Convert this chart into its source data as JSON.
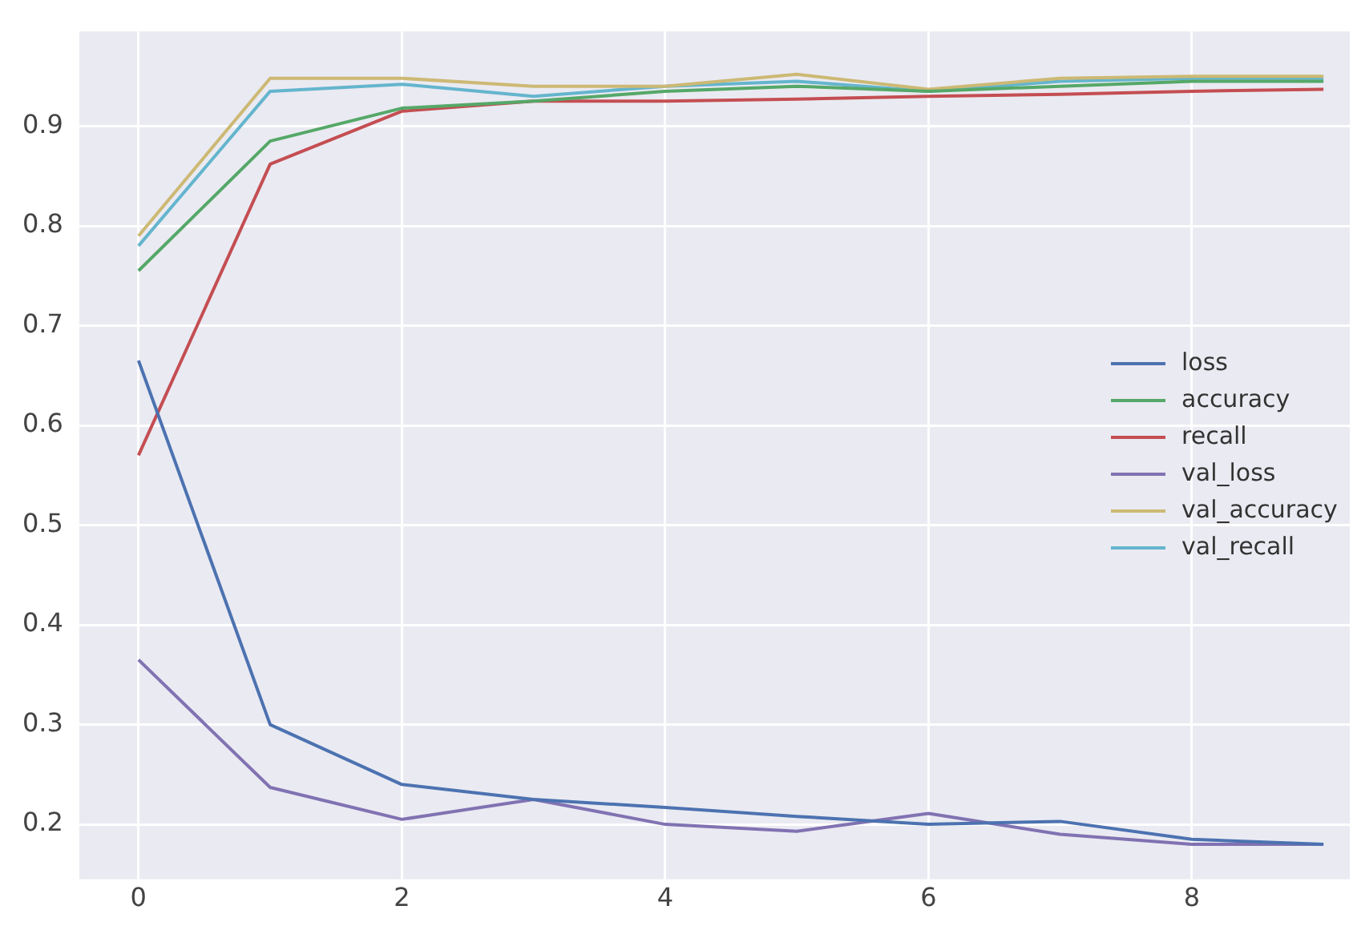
{
  "chart_data": {
    "type": "line",
    "x": [
      0,
      1,
      2,
      3,
      4,
      5,
      6,
      7,
      8,
      9
    ],
    "series": [
      {
        "name": "loss",
        "color": "#4c72b0",
        "values": [
          0.665,
          0.3,
          0.24,
          0.225,
          0.217,
          0.208,
          0.2,
          0.203,
          0.185,
          0.18
        ]
      },
      {
        "name": "accuracy",
        "color": "#55a868",
        "values": [
          0.755,
          0.885,
          0.918,
          0.925,
          0.935,
          0.94,
          0.935,
          0.94,
          0.945,
          0.945
        ]
      },
      {
        "name": "recall",
        "color": "#c44e52",
        "values": [
          0.57,
          0.862,
          0.915,
          0.925,
          0.925,
          0.927,
          0.93,
          0.932,
          0.935,
          0.937
        ]
      },
      {
        "name": "val_loss",
        "color": "#8172b2",
        "values": [
          0.365,
          0.237,
          0.205,
          0.225,
          0.2,
          0.193,
          0.211,
          0.19,
          0.18,
          0.18
        ]
      },
      {
        "name": "val_accuracy",
        "color": "#ccb974",
        "values": [
          0.79,
          0.948,
          0.948,
          0.94,
          0.94,
          0.952,
          0.937,
          0.948,
          0.95,
          0.95
        ]
      },
      {
        "name": "val_recall",
        "color": "#64b5cd",
        "values": [
          0.78,
          0.935,
          0.942,
          0.93,
          0.94,
          0.945,
          0.935,
          0.945,
          0.948,
          0.948
        ]
      }
    ],
    "xlim": [
      -0.45,
      9.2
    ],
    "xticks": [
      0,
      2,
      4,
      6,
      8
    ],
    "ylim": [
      0.145,
      0.995
    ],
    "yticks": [
      0.2,
      0.3,
      0.4,
      0.5,
      0.6,
      0.7,
      0.8,
      0.9
    ],
    "grid": true,
    "legend": "center right",
    "marker": "none",
    "line_style": "solid"
  }
}
